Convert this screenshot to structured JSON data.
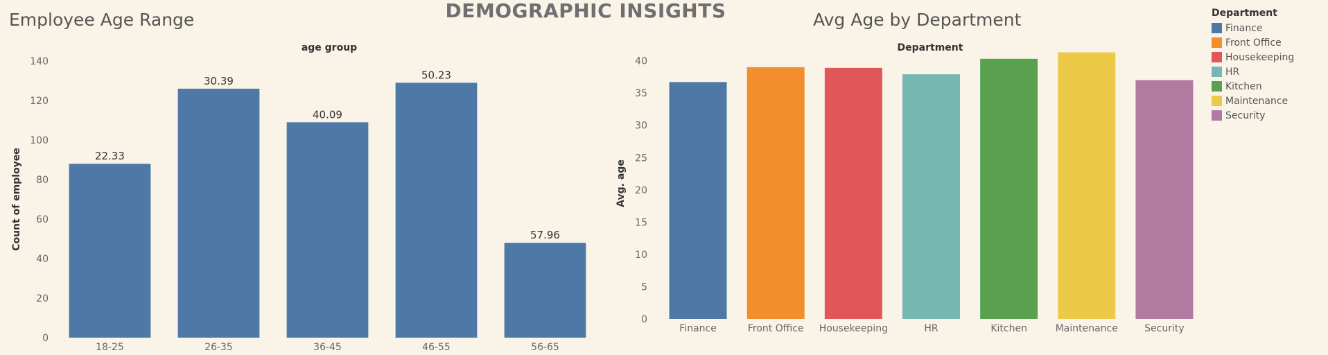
{
  "dashboard": {
    "title": "DEMOGRAPHIC INSIGHTS"
  },
  "chart_data": [
    {
      "type": "bar",
      "title": "Employee Age Range",
      "header_label": "age group",
      "xlabel": "",
      "ylabel": "Count of employee",
      "categories": [
        "18-25",
        "26-35",
        "36-45",
        "46-55",
        "56-65"
      ],
      "values": [
        88,
        126,
        109,
        129,
        48
      ],
      "data_labels": [
        "22.33",
        "30.39",
        "40.09",
        "50.23",
        "57.96"
      ],
      "ylim": [
        0,
        140
      ],
      "yticks": [
        0,
        20,
        40,
        60,
        80,
        100,
        120,
        140
      ],
      "color": "#4e79a7",
      "grid": false
    },
    {
      "type": "bar",
      "title": "Avg Age by Department",
      "header_label": "Department",
      "xlabel": "",
      "ylabel": "Avg. age",
      "categories": [
        "Finance",
        "Front Office",
        "Housekeeping",
        "HR",
        "Kitchen",
        "Maintenance",
        "Security"
      ],
      "values": [
        36.7,
        39.0,
        38.9,
        37.9,
        40.3,
        41.3,
        37.0
      ],
      "colors": [
        "#4e79a7",
        "#f28e2b",
        "#e15759",
        "#76b7b2",
        "#59a14f",
        "#edc948",
        "#b07aa1"
      ],
      "ylim": [
        0,
        42
      ],
      "yticks": [
        0,
        5,
        10,
        15,
        20,
        25,
        30,
        35,
        40
      ],
      "legend": {
        "title": "Department",
        "placement": "right",
        "items": [
          "Finance",
          "Front Office",
          "Housekeeping",
          "HR",
          "Kitchen",
          "Maintenance",
          "Security"
        ]
      },
      "grid": false
    }
  ]
}
